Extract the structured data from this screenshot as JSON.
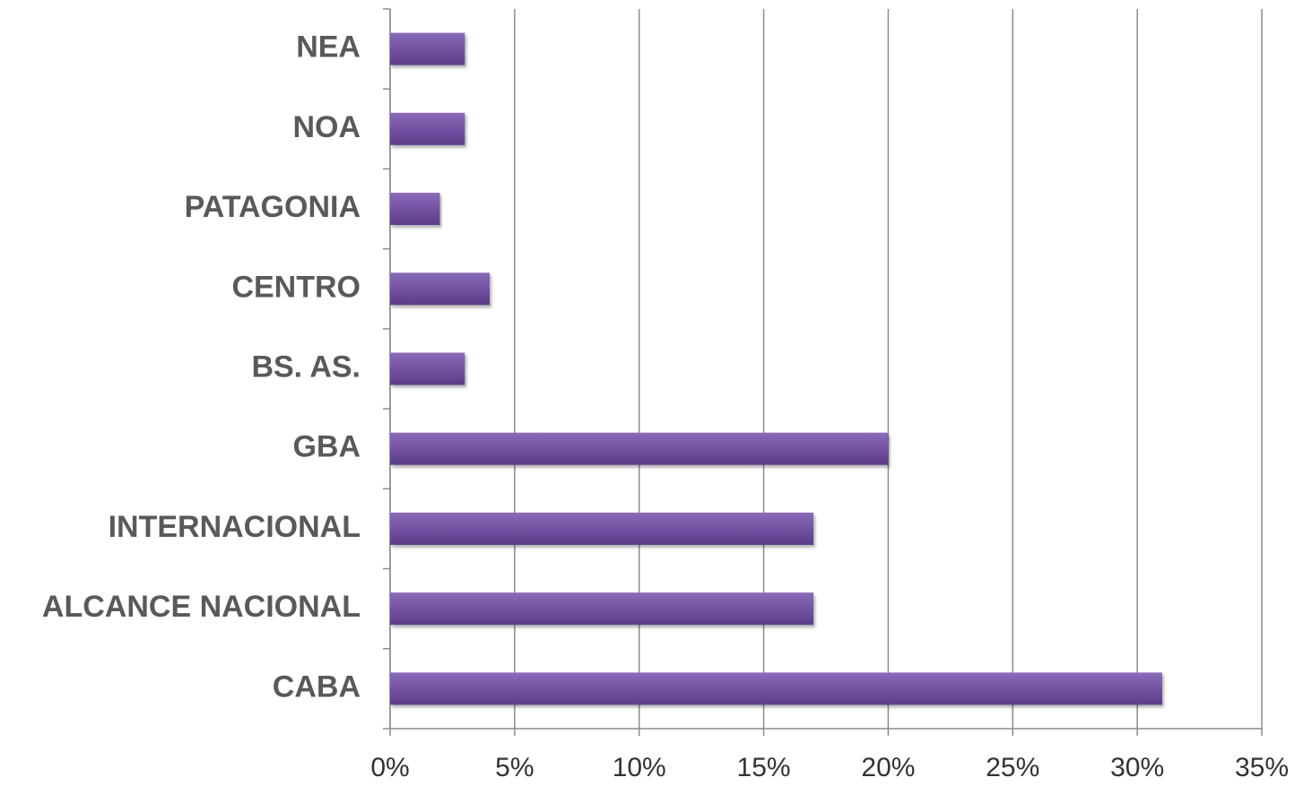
{
  "chart_data": {
    "type": "barh",
    "categories": [
      "NEA",
      "NOA",
      "PATAGONIA",
      "CENTRO",
      "BS. AS.",
      "GBA",
      "INTERNACIONAL",
      "ALCANCE NACIONAL",
      "CABA"
    ],
    "values": [
      3,
      3,
      2,
      4,
      3,
      20,
      17,
      17,
      31
    ],
    "color": "#6f4fa0",
    "xlim": [
      0,
      35
    ],
    "xticks": [
      {
        "value": 0,
        "label": "0%"
      },
      {
        "value": 5,
        "label": "5%"
      },
      {
        "value": 10,
        "label": "10%"
      },
      {
        "value": 15,
        "label": "15%"
      },
      {
        "value": 20,
        "label": "20%"
      },
      {
        "value": 25,
        "label": "25%"
      },
      {
        "value": 30,
        "label": "30%"
      },
      {
        "value": 35,
        "label": "35%"
      }
    ],
    "grid": true
  }
}
